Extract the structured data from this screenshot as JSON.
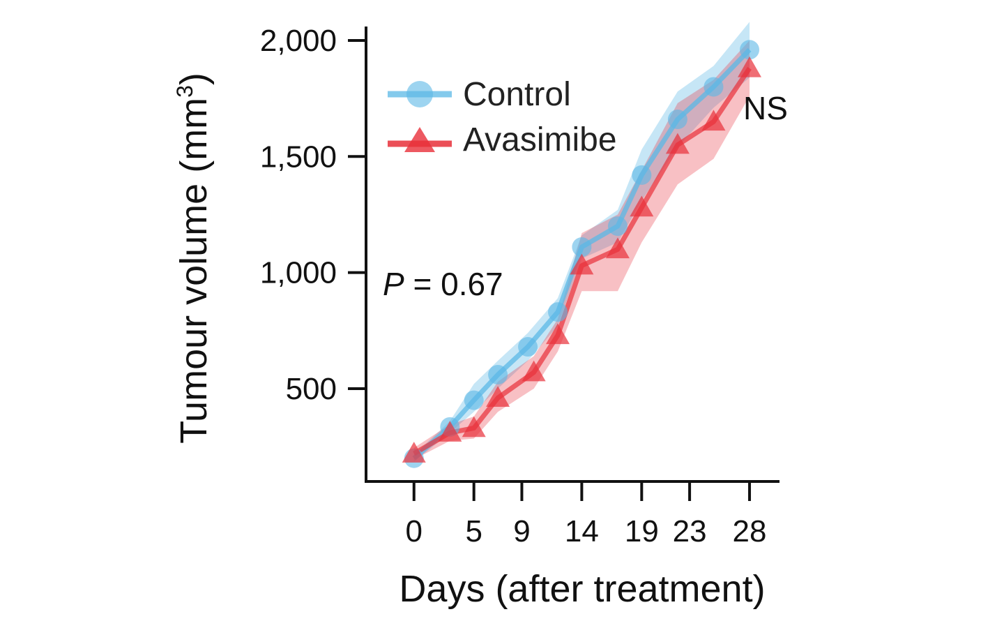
{
  "chart_data": {
    "type": "line",
    "xlabel": "Days (after treatment)",
    "ylabel": "Tumour volume (mm",
    "ylabel_sup": "3",
    "ylabel_close": ")",
    "x_ticks": [
      0,
      5,
      9,
      14,
      19,
      23,
      28
    ],
    "y_ticks": [
      500,
      1000,
      1500,
      2000
    ],
    "y_tick_labels": [
      "500",
      "1,000",
      "1,500",
      "2,000"
    ],
    "xlim": [
      -4,
      30.5
    ],
    "ylim": [
      100,
      2060
    ],
    "series": [
      {
        "name": "Control",
        "color": "#5bb8e6",
        "marker": "circle",
        "x": [
          0,
          3,
          5,
          7,
          9.5,
          12,
          14,
          17,
          19,
          22,
          25,
          28
        ],
        "y": [
          200,
          335,
          450,
          560,
          680,
          830,
          1110,
          1200,
          1420,
          1660,
          1800,
          1960
        ],
        "upper": [
          215,
          360,
          520,
          620,
          740,
          890,
          1160,
          1270,
          1530,
          1780,
          1890,
          2080
        ],
        "lower": [
          185,
          310,
          400,
          500,
          620,
          770,
          1060,
          1130,
          1310,
          1540,
          1710,
          1840
        ]
      },
      {
        "name": "Avasimibe",
        "color": "#e8303a",
        "marker": "triangle",
        "x": [
          0,
          3,
          5,
          7,
          10,
          12,
          14,
          17,
          19,
          22,
          25,
          28
        ],
        "y": [
          220,
          310,
          330,
          460,
          570,
          730,
          1030,
          1100,
          1280,
          1550,
          1650,
          1880
        ],
        "upper": [
          245,
          345,
          380,
          530,
          640,
          800,
          1170,
          1250,
          1440,
          1730,
          1830,
          2000
        ],
        "lower": [
          195,
          275,
          285,
          400,
          500,
          660,
          920,
          920,
          1130,
          1380,
          1490,
          1760
        ]
      }
    ],
    "legend_position": "top-left",
    "annotations": {
      "p_prefix": "P",
      "p_value": " = 0.67",
      "significance": "NS"
    }
  }
}
